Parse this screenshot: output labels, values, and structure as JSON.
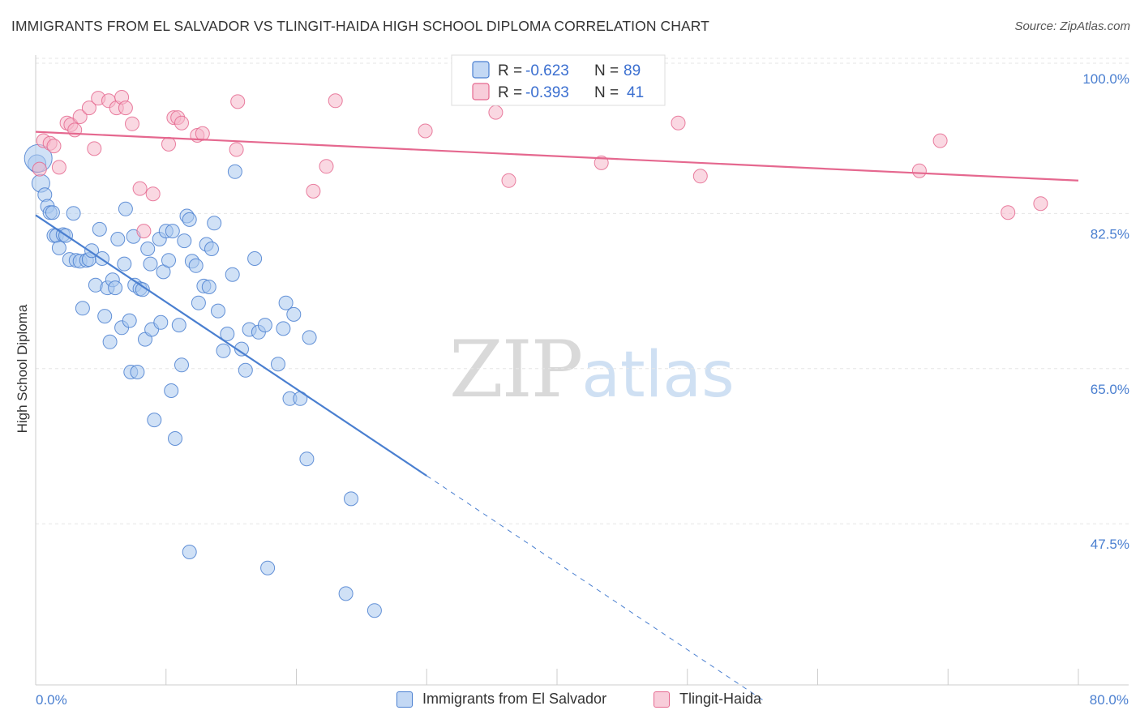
{
  "header": {
    "title": "IMMIGRANTS FROM EL SALVADOR VS TLINGIT-HAIDA HIGH SCHOOL DIPLOMA CORRELATION CHART",
    "source": "Source: ZipAtlas.com"
  },
  "watermark": {
    "zip": "ZIP",
    "atlas": "atlas"
  },
  "legend": {
    "series1": {
      "r_label": "R =",
      "r_value": "-0.623",
      "n_label": "N =",
      "n_value": "89"
    },
    "series2": {
      "r_label": "R =",
      "r_value": "-0.393",
      "n_label": "N =",
      "n_value": "41"
    }
  },
  "chart_data": {
    "type": "scatter",
    "title": "IMMIGRANTS FROM EL SALVADOR VS TLINGIT-HAIDA HIGH SCHOOL DIPLOMA CORRELATION CHART",
    "xlabel": "",
    "ylabel": "High School Diploma",
    "xlim": [
      0,
      80
    ],
    "ylim": [
      30,
      102
    ],
    "x_tick_labels": [
      "0.0%",
      "80.0%"
    ],
    "y_ticks": [
      47.5,
      65.0,
      82.5,
      100.0
    ],
    "y_tick_labels": [
      "47.5%",
      "65.0%",
      "82.5%",
      "100.0%"
    ],
    "colors": {
      "blue": "#4a7fd0",
      "blue_fill": "#a9c8ef",
      "pink": "#e5688f",
      "pink_fill": "#f5b8cb"
    },
    "series": [
      {
        "name": "Immigrants from El Salvador",
        "color": "blue",
        "trend": {
          "x0": 0,
          "y0": 84.6,
          "x1": 30,
          "y1": 55.2,
          "dash_to_x": 56.0,
          "dash_to_y": 29.7
        },
        "points": [
          [
            0.1,
            90.4
          ],
          [
            0.4,
            88.2
          ],
          [
            0.7,
            86.9
          ],
          [
            0.9,
            85.6
          ],
          [
            1.1,
            84.9
          ],
          [
            1.3,
            84.9
          ],
          [
            1.4,
            82.3
          ],
          [
            1.6,
            82.3
          ],
          [
            1.8,
            80.9
          ],
          [
            2.1,
            82.4
          ],
          [
            2.3,
            82.3
          ],
          [
            2.6,
            79.6
          ],
          [
            2.9,
            84.8
          ],
          [
            3.1,
            79.5
          ],
          [
            3.4,
            79.4
          ],
          [
            3.6,
            74.1
          ],
          [
            3.9,
            79.5
          ],
          [
            4.1,
            79.6
          ],
          [
            4.3,
            80.6
          ],
          [
            4.6,
            76.7
          ],
          [
            4.9,
            83.0
          ],
          [
            5.1,
            79.7
          ],
          [
            5.3,
            73.2
          ],
          [
            5.5,
            76.4
          ],
          [
            5.7,
            70.3
          ],
          [
            5.9,
            77.3
          ],
          [
            6.1,
            76.4
          ],
          [
            6.3,
            81.9
          ],
          [
            6.6,
            71.9
          ],
          [
            6.8,
            79.1
          ],
          [
            6.9,
            85.3
          ],
          [
            7.2,
            72.7
          ],
          [
            7.3,
            66.9
          ],
          [
            7.5,
            82.2
          ],
          [
            7.6,
            76.7
          ],
          [
            7.8,
            66.9
          ],
          [
            8.0,
            76.3
          ],
          [
            8.2,
            76.2
          ],
          [
            8.4,
            70.6
          ],
          [
            8.6,
            80.8
          ],
          [
            8.8,
            79.1
          ],
          [
            8.9,
            71.7
          ],
          [
            9.1,
            61.5
          ],
          [
            9.5,
            81.9
          ],
          [
            9.6,
            72.5
          ],
          [
            9.8,
            78.2
          ],
          [
            10.0,
            82.8
          ],
          [
            10.2,
            79.5
          ],
          [
            10.4,
            64.8
          ],
          [
            10.5,
            82.8
          ],
          [
            10.7,
            59.4
          ],
          [
            11.0,
            72.2
          ],
          [
            11.2,
            67.7
          ],
          [
            11.4,
            81.7
          ],
          [
            11.6,
            84.5
          ],
          [
            11.8,
            84.1
          ],
          [
            12.0,
            79.4
          ],
          [
            12.3,
            78.9
          ],
          [
            12.5,
            74.7
          ],
          [
            12.9,
            76.6
          ],
          [
            13.1,
            81.3
          ],
          [
            13.3,
            76.5
          ],
          [
            13.5,
            80.8
          ],
          [
            13.7,
            83.7
          ],
          [
            14.0,
            73.8
          ],
          [
            14.4,
            69.3
          ],
          [
            14.7,
            71.2
          ],
          [
            15.1,
            77.9
          ],
          [
            15.3,
            89.5
          ],
          [
            15.8,
            69.5
          ],
          [
            16.1,
            67.1
          ],
          [
            16.4,
            71.7
          ],
          [
            16.8,
            79.7
          ],
          [
            17.1,
            71.4
          ],
          [
            17.6,
            72.2
          ],
          [
            18.6,
            67.8
          ],
          [
            19.0,
            71.8
          ],
          [
            19.2,
            74.7
          ],
          [
            19.5,
            63.9
          ],
          [
            19.8,
            73.4
          ],
          [
            20.3,
            63.9
          ],
          [
            20.8,
            57.1
          ],
          [
            21.0,
            70.8
          ],
          [
            11.8,
            46.6
          ],
          [
            17.8,
            44.8
          ],
          [
            23.8,
            41.9
          ],
          [
            24.2,
            52.6
          ],
          [
            26.0,
            40.0
          ],
          [
            0.2,
            91.0
          ]
        ]
      },
      {
        "name": "Tlingit-Haida",
        "color": "pink",
        "trend": {
          "x0": 0,
          "y0": 94.0,
          "x1": 80,
          "y1": 88.5
        },
        "points": [
          [
            0.3,
            89.8
          ],
          [
            0.6,
            93.0
          ],
          [
            1.1,
            92.7
          ],
          [
            1.4,
            92.4
          ],
          [
            1.8,
            90.0
          ],
          [
            2.4,
            95.0
          ],
          [
            2.7,
            94.8
          ],
          [
            3.0,
            94.2
          ],
          [
            3.4,
            95.7
          ],
          [
            4.1,
            96.7
          ],
          [
            4.5,
            92.1
          ],
          [
            4.8,
            97.8
          ],
          [
            5.6,
            97.5
          ],
          [
            6.2,
            96.7
          ],
          [
            6.6,
            97.9
          ],
          [
            6.9,
            96.7
          ],
          [
            7.4,
            94.9
          ],
          [
            8.0,
            87.6
          ],
          [
            8.3,
            82.8
          ],
          [
            9.0,
            87.0
          ],
          [
            10.2,
            92.6
          ],
          [
            10.6,
            95.6
          ],
          [
            10.9,
            95.6
          ],
          [
            11.2,
            95.0
          ],
          [
            12.4,
            93.6
          ],
          [
            12.8,
            93.8
          ],
          [
            15.4,
            92.0
          ],
          [
            15.5,
            97.4
          ],
          [
            21.3,
            87.3
          ],
          [
            22.3,
            90.1
          ],
          [
            23.0,
            97.5
          ],
          [
            29.9,
            94.1
          ],
          [
            35.3,
            96.2
          ],
          [
            36.3,
            88.5
          ],
          [
            43.4,
            90.5
          ],
          [
            49.3,
            95.0
          ],
          [
            51.0,
            89.0
          ],
          [
            67.8,
            89.6
          ],
          [
            69.4,
            93.0
          ],
          [
            74.6,
            84.9
          ],
          [
            77.1,
            85.9
          ]
        ]
      }
    ],
    "legend_items": [
      "Immigrants from El Salvador",
      "Tlingit-Haida"
    ]
  }
}
